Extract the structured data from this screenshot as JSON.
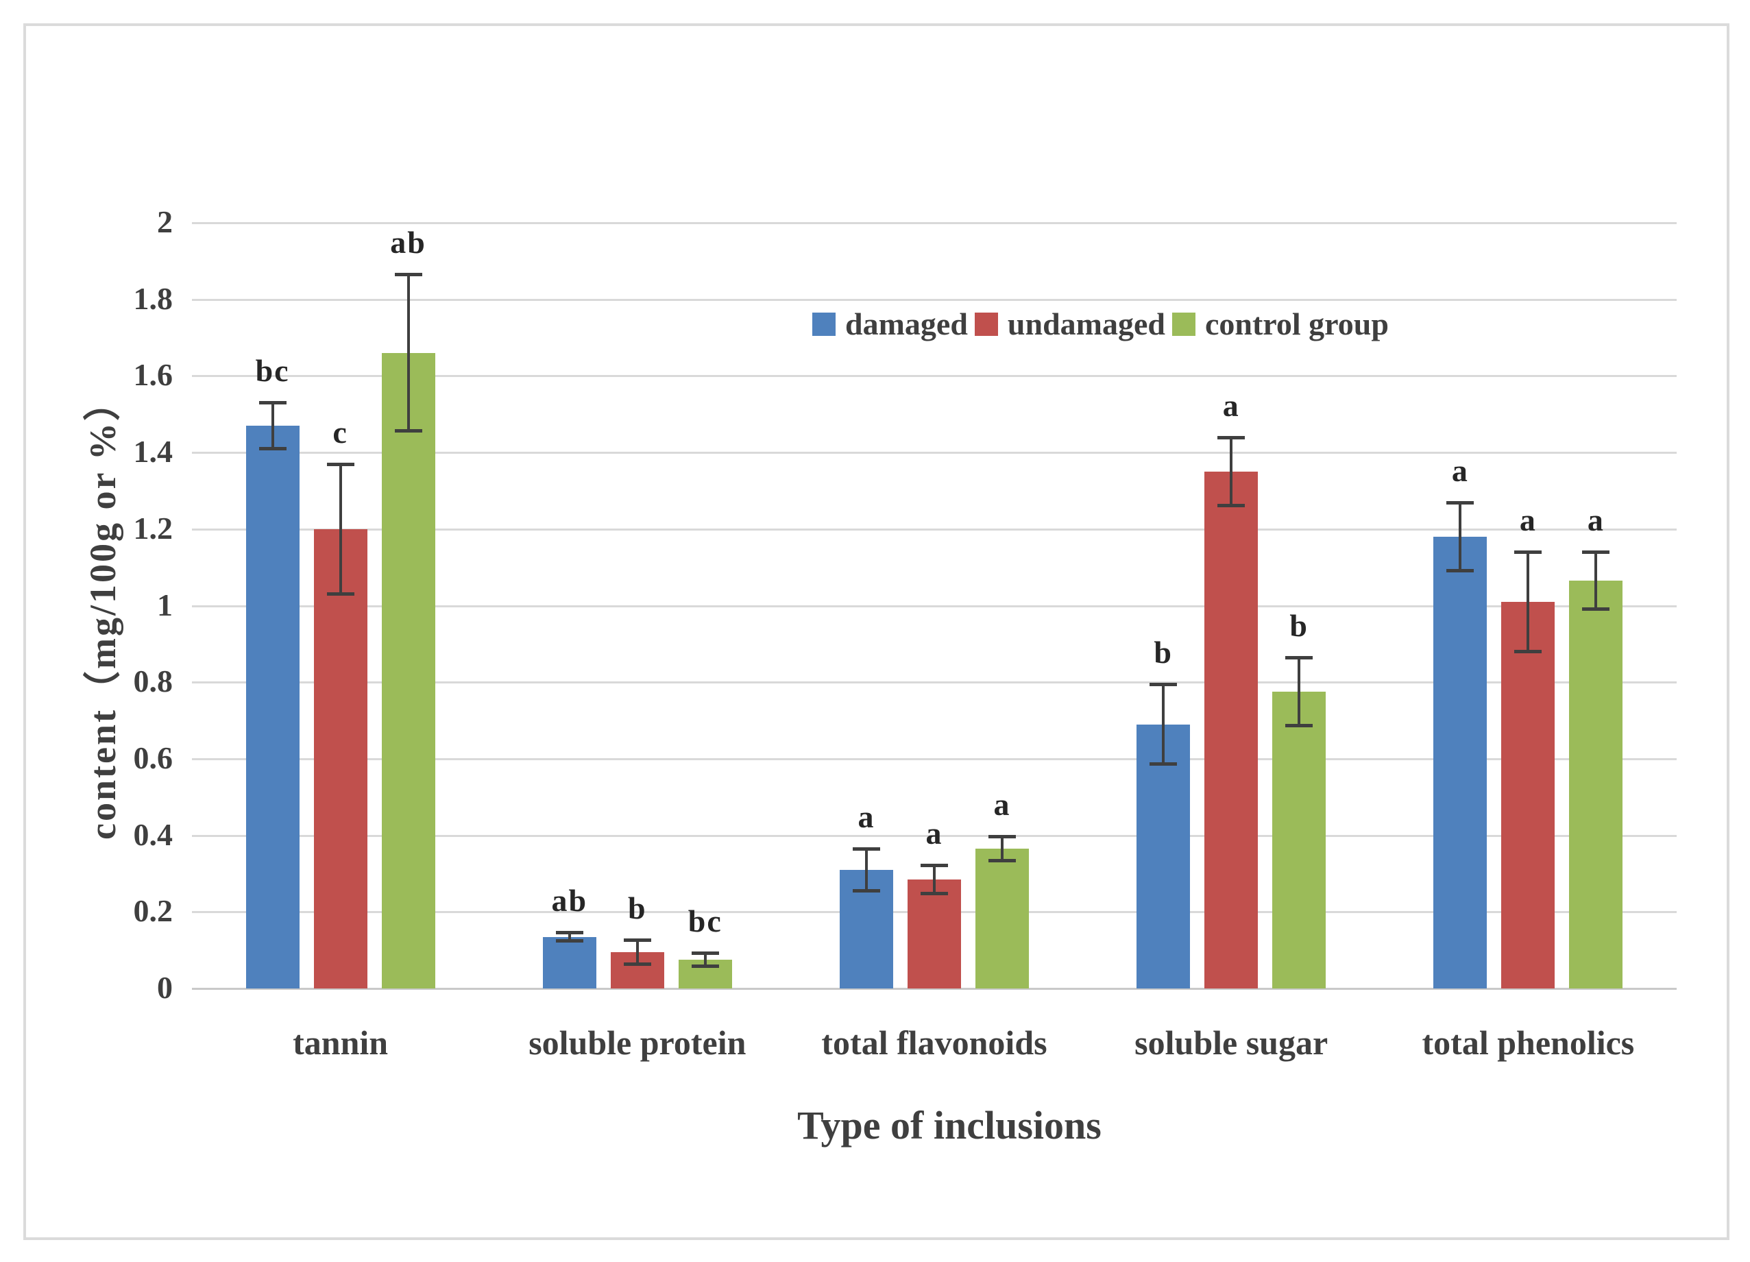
{
  "chart_data": {
    "type": "bar",
    "title": "",
    "xlabel": "Type of inclusions",
    "ylabel": "content（mg/100g or %）",
    "ylim": [
      0,
      2
    ],
    "ytick_step": 0.2,
    "ytick_labels": [
      "0",
      "0.2",
      "0.4",
      "0.6",
      "0.8",
      "1",
      "1.2",
      "1.4",
      "1.6",
      "1.8",
      "2"
    ],
    "grid": true,
    "legend_position": "top-center-inside",
    "categories": [
      "tannin",
      "soluble protein",
      "total flavonoids",
      "soluble sugar",
      "total phenolics"
    ],
    "series": [
      {
        "name": "damaged",
        "color": "#4F81BD",
        "values": [
          1.47,
          0.135,
          0.31,
          0.69,
          1.18
        ],
        "errors": [
          0.06,
          0.012,
          0.055,
          0.105,
          0.09
        ],
        "letters": [
          "bc",
          "ab",
          "a",
          "b",
          "a"
        ]
      },
      {
        "name": "undamaged",
        "color": "#C0504D",
        "values": [
          1.2,
          0.095,
          0.285,
          1.35,
          1.01
        ],
        "errors": [
          0.17,
          0.032,
          0.038,
          0.09,
          0.13
        ],
        "letters": [
          "c",
          "b",
          "a",
          "a",
          "a"
        ]
      },
      {
        "name": "control group",
        "color": "#9BBB59",
        "values": [
          1.66,
          0.075,
          0.365,
          0.775,
          1.065
        ],
        "errors": [
          0.205,
          0.018,
          0.032,
          0.09,
          0.075
        ],
        "letters": [
          "ab",
          "bc",
          "a",
          "b",
          "a"
        ]
      }
    ],
    "error_bar_color": "#3f3f3f",
    "text_color": "#3f3f3f"
  }
}
